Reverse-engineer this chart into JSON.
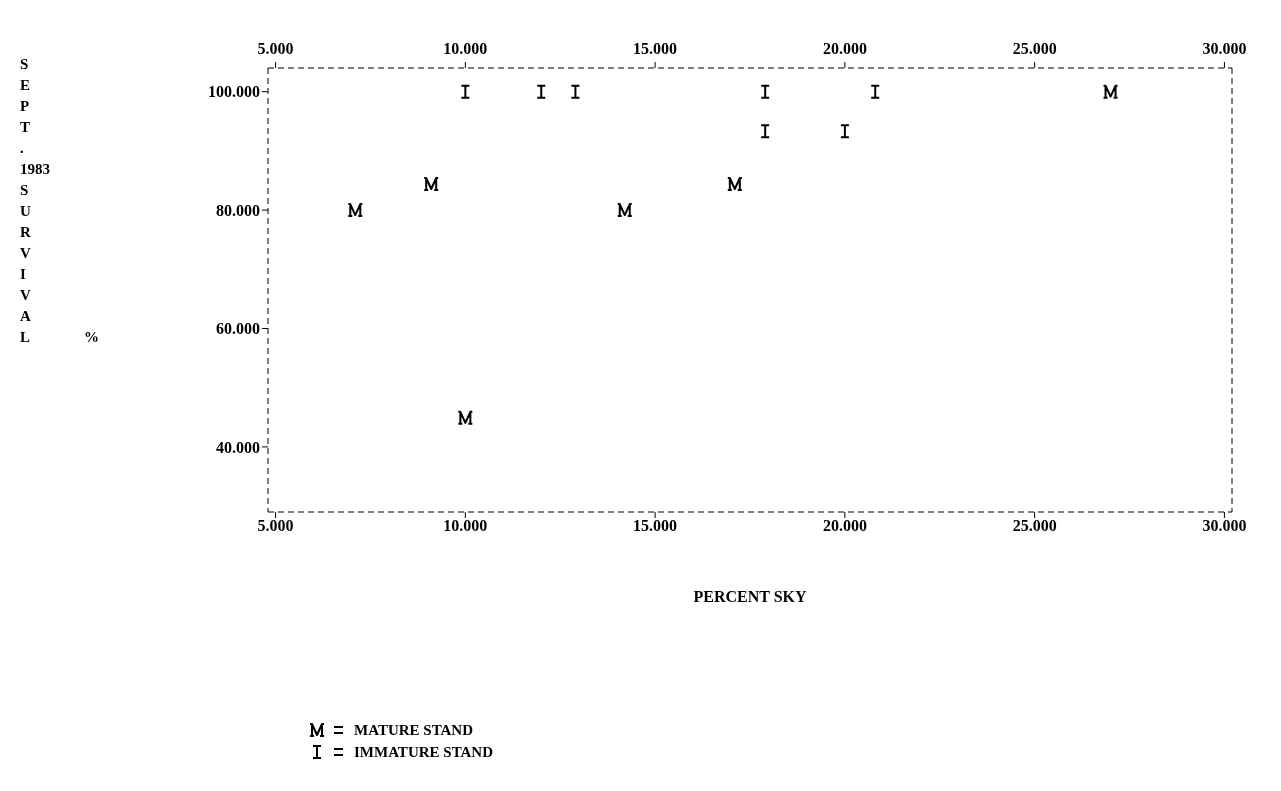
{
  "chart_data": {
    "type": "scatter",
    "xlabel": "PERCENT SKY",
    "ylabel": "SEPT. 1983 SURVIVAL %",
    "xlim": [
      4.8,
      30.2
    ],
    "xticks": [
      {
        "value": 5,
        "label": "5.000"
      },
      {
        "value": 10,
        "label": "10.000"
      },
      {
        "value": 15,
        "label": "15.000"
      },
      {
        "value": 20,
        "label": "20.000"
      },
      {
        "value": 25,
        "label": "25.000"
      },
      {
        "value": 30,
        "label": "30.000"
      }
    ],
    "x2lim": [
      4.8,
      30.2
    ],
    "x2ticks": [
      {
        "value": 5,
        "label": "5.000"
      },
      {
        "value": 10,
        "label": "10.000"
      },
      {
        "value": 15,
        "label": "15.000"
      },
      {
        "value": 20,
        "label": "20.000"
      },
      {
        "value": 25,
        "label": "25.000"
      },
      {
        "value": 30,
        "label": "30.000"
      }
    ],
    "ylim": [
      29,
      104
    ],
    "yticks": [
      {
        "value": 40,
        "label": "40.000"
      },
      {
        "value": 60,
        "label": "60.000"
      },
      {
        "value": 80,
        "label": "80.000"
      },
      {
        "value": 100,
        "label": "100.000"
      }
    ],
    "legend": "bottom",
    "grid": false,
    "series": [
      {
        "name": "MATURE STAND",
        "color": "#000000",
        "x": [
          27.0,
          9.1,
          17.1,
          7.1,
          14.2,
          10.0
        ],
        "values": [
          100,
          84.4,
          84.4,
          80,
          80,
          44.9
        ]
      },
      {
        "name": "IMMATURE STAND",
        "color": "#000000",
        "x": [
          10.0,
          12.0,
          12.9,
          17.9,
          20.8,
          17.9,
          20.0
        ],
        "values": [
          100,
          100,
          100,
          100,
          100,
          93.3,
          93.3
        ]
      }
    ]
  }
}
